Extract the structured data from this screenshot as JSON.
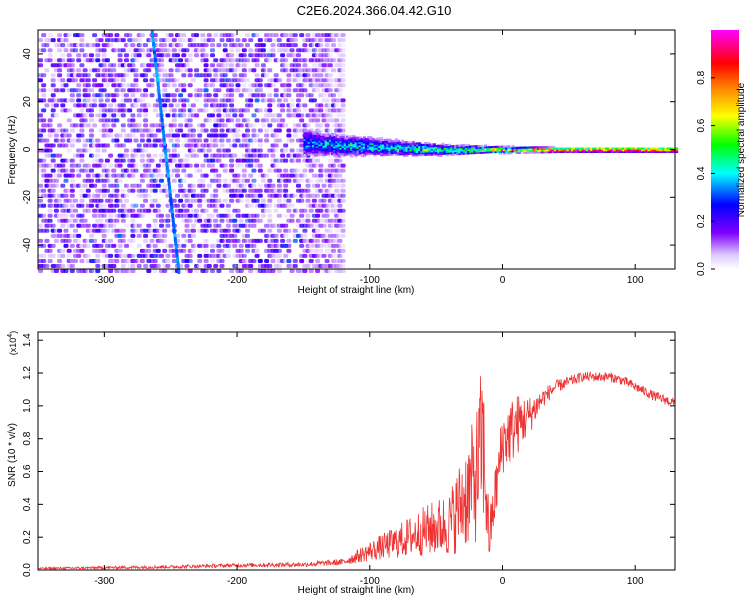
{
  "figure_title": "C2E6.2024.366.04.42.G10",
  "chart_data": [
    {
      "type": "heatmap",
      "title": "",
      "xlabel": "Height of straight line (km)",
      "ylabel": "Frequency (Hz)",
      "xlim": [
        -350,
        130
      ],
      "ylim": [
        -50,
        50
      ],
      "x_ticks": [
        -300,
        -200,
        -100,
        0,
        100
      ],
      "y_ticks": [
        -40,
        -20,
        0,
        20,
        40
      ],
      "x_tick_labels": [
        "-300",
        "-200",
        "-100",
        "0",
        "100"
      ],
      "y_tick_labels": [
        "-40",
        "-20",
        "0",
        "20",
        "40"
      ],
      "colorbar": {
        "label": "Normalized spectral amplitude",
        "range": [
          0,
          1
        ],
        "ticks": [
          0.0,
          0.2,
          0.4,
          0.6,
          0.8
        ],
        "tick_labels": [
          "0.0",
          "0.2",
          "0.4",
          "0.6",
          "0.8"
        ],
        "colors": [
          "#ffffff",
          "#7f00ff",
          "#0000ff",
          "#00ffff",
          "#00ff00",
          "#ffff00",
          "#ff7f00",
          "#ff0000",
          "#ff00ff"
        ]
      },
      "noise_region": {
        "x": [
          -350,
          -120
        ],
        "y": [
          -50,
          50
        ],
        "level": 0.12
      },
      "signal_track": {
        "x": [
          -150,
          -130,
          -110,
          -90,
          -70,
          -50,
          -30,
          -10,
          10,
          40,
          70,
          100,
          130
        ],
        "freq_center": [
          3,
          2,
          1.5,
          1,
          0.5,
          0,
          0,
          0,
          0,
          0,
          0,
          0,
          0
        ],
        "freq_halfwidth": [
          5,
          4,
          3.5,
          3,
          2.5,
          2,
          1.5,
          1.2,
          1,
          0.8,
          0.8,
          0.8,
          0.8
        ],
        "amplitude": [
          0.35,
          0.4,
          0.45,
          0.45,
          0.5,
          0.55,
          0.65,
          0.75,
          0.85,
          0.9,
          0.95,
          0.95,
          0.9
        ]
      },
      "diagonal_streak": {
        "x": [
          -265,
          -245
        ],
        "y": [
          50,
          -50
        ],
        "level": 0.3
      }
    },
    {
      "type": "line",
      "title": "",
      "xlabel": "Height of straight line (km)",
      "ylabel": "SNR (10 * v/v)",
      "y_scale_label": "(x10",
      "y_scale_exponent": "4",
      "y_scale_suffix": ")",
      "xlim": [
        -350,
        130
      ],
      "ylim": [
        0,
        1.45
      ],
      "x_ticks": [
        -300,
        -200,
        -100,
        0,
        100
      ],
      "y_ticks": [
        0.0,
        0.2,
        0.4,
        0.6,
        0.8,
        1.0,
        1.2,
        1.4
      ],
      "x_tick_labels": [
        "-300",
        "-200",
        "-100",
        "0",
        "100"
      ],
      "y_tick_labels": [
        "0.0",
        "0.2",
        "0.4",
        "0.6",
        "0.8",
        "1.0",
        "1.2",
        "1.4"
      ],
      "series": [
        {
          "color": "#ee3333",
          "x": [
            -350,
            -300,
            -250,
            -200,
            -150,
            -120,
            -100,
            -80,
            -60,
            -40,
            -30,
            -20,
            -15,
            -10,
            0,
            10,
            20,
            30,
            40,
            60,
            80,
            90,
            100,
            115,
            130
          ],
          "y": [
            0.01,
            0.015,
            0.02,
            0.03,
            0.035,
            0.05,
            0.12,
            0.18,
            0.25,
            0.3,
            0.45,
            0.6,
            0.85,
            0.2,
            0.8,
            0.9,
            0.95,
            1.05,
            1.12,
            1.18,
            1.18,
            1.16,
            1.12,
            1.06,
            1.02
          ],
          "spread": [
            0.005,
            0.008,
            0.01,
            0.012,
            0.015,
            0.02,
            0.06,
            0.1,
            0.15,
            0.2,
            0.3,
            0.4,
            0.5,
            0.15,
            0.2,
            0.2,
            0.12,
            0.06,
            0.04,
            0.03,
            0.03,
            0.03,
            0.03,
            0.03,
            0.03
          ]
        }
      ]
    }
  ]
}
